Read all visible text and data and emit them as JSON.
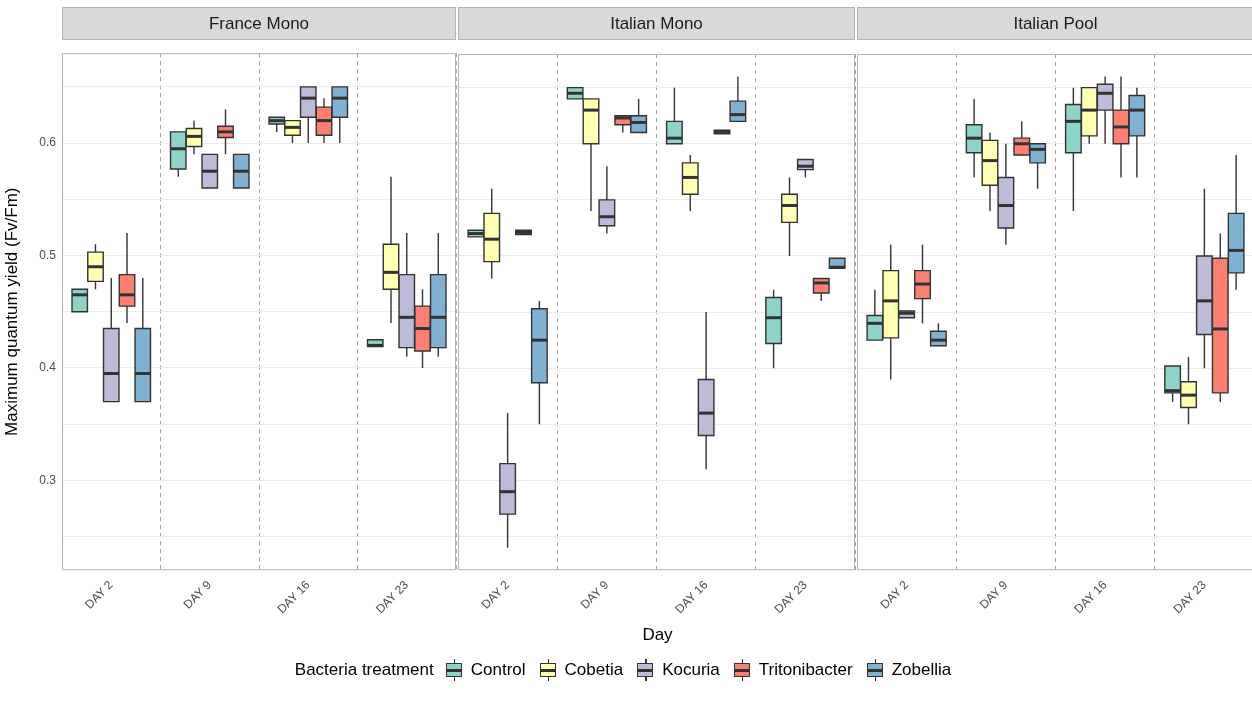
{
  "chart_data": [
    {
      "type": "box",
      "title": "France Mono",
      "ylabel": "Maximum quantum yield (Fv/Fm)",
      "grid": true,
      "categories": [
        "DAY 2",
        "DAY 9",
        "DAY 16",
        "DAY 23"
      ],
      "ylim": [
        0.22,
        0.68
      ],
      "yticks": [
        {
          "value": 0.25,
          "label": null
        },
        0.3,
        {
          "value": 0.35,
          "label": null
        },
        0.4,
        {
          "value": 0.45,
          "label": null
        },
        0.5,
        {
          "value": 0.55,
          "label": null
        },
        0.6,
        {
          "value": 0.65,
          "label": null
        }
      ],
      "series": [
        {
          "color": "#8dd3c7",
          "boxes": [
            {
              "low": 0.45,
              "q1": 0.45,
              "median": 0.465,
              "q3": 0.47,
              "high": 0.47
            },
            {
              "low": 0.57,
              "q1": 0.577,
              "median": 0.595,
              "q3": 0.61,
              "high": 0.61
            },
            {
              "low": 0.61,
              "q1": 0.617,
              "median": 0.62,
              "q3": 0.623,
              "high": 0.623
            },
            {
              "low": 0.419,
              "q1": 0.419,
              "median": 0.42,
              "q3": 0.425,
              "high": 0.425
            }
          ]
        },
        {
          "color": "#ffffb3",
          "boxes": [
            {
              "low": 0.47,
              "q1": 0.477,
              "median": 0.49,
              "q3": 0.503,
              "high": 0.51
            },
            {
              "low": 0.59,
              "q1": 0.597,
              "median": 0.606,
              "q3": 0.613,
              "high": 0.62
            },
            {
              "low": 0.6,
              "q1": 0.607,
              "median": 0.614,
              "q3": 0.62,
              "high": 0.62
            },
            {
              "low": 0.44,
              "q1": 0.47,
              "median": 0.485,
              "q3": 0.51,
              "high": 0.57
            }
          ]
        },
        {
          "color": "#bebada",
          "boxes": [
            {
              "low": 0.37,
              "q1": 0.37,
              "median": 0.395,
              "q3": 0.435,
              "high": 0.48
            },
            {
              "low": 0.56,
              "q1": 0.56,
              "median": 0.575,
              "q3": 0.59,
              "high": 0.59
            },
            {
              "low": 0.6,
              "q1": 0.623,
              "median": 0.64,
              "q3": 0.65,
              "high": 0.65
            },
            {
              "low": 0.41,
              "q1": 0.418,
              "median": 0.445,
              "q3": 0.483,
              "high": 0.52
            }
          ]
        },
        {
          "color": "#fb8072",
          "boxes": [
            {
              "low": 0.44,
              "q1": 0.455,
              "median": 0.465,
              "q3": 0.483,
              "high": 0.52
            },
            {
              "low": 0.59,
              "q1": 0.605,
              "median": 0.61,
              "q3": 0.615,
              "high": 0.63
            },
            {
              "low": 0.6,
              "q1": 0.607,
              "median": 0.62,
              "q3": 0.632,
              "high": 0.64
            },
            {
              "low": 0.4,
              "q1": 0.415,
              "median": 0.435,
              "q3": 0.455,
              "high": 0.47
            }
          ]
        },
        {
          "color": "#80b1d3",
          "boxes": [
            {
              "low": 0.37,
              "q1": 0.37,
              "median": 0.395,
              "q3": 0.435,
              "high": 0.48
            },
            {
              "low": 0.56,
              "q1": 0.56,
              "median": 0.575,
              "q3": 0.59,
              "high": 0.59
            },
            {
              "low": 0.6,
              "q1": 0.623,
              "median": 0.64,
              "q3": 0.65,
              "high": 0.65
            },
            {
              "low": 0.41,
              "q1": 0.418,
              "median": 0.445,
              "q3": 0.483,
              "high": 0.52
            }
          ]
        }
      ]
    },
    {
      "type": "box",
      "title": "Italian Mono",
      "xlabel": "Day",
      "legend": "bottom",
      "legend_title": "Bacteria treatment",
      "tick_labels": "x",
      "grid": true,
      "categories": [
        "DAY 2",
        "DAY 9",
        "DAY 16",
        "DAY 23"
      ],
      "ylim": [
        0.22,
        0.68
      ],
      "yticks": [
        {
          "value": 0.25,
          "label": null
        },
        0.3,
        {
          "value": 0.35,
          "label": null
        },
        0.4,
        {
          "value": 0.45,
          "label": null
        },
        0.5,
        {
          "value": 0.55,
          "label": null
        },
        0.6,
        {
          "value": 0.65,
          "label": null
        }
      ],
      "series": [
        {
          "name": "Control",
          "color": "#8dd3c7",
          "boxes": [
            {
              "low": 0.517,
              "q1": 0.517,
              "median": 0.52,
              "q3": 0.523,
              "high": 0.523
            },
            {
              "low": 0.64,
              "q1": 0.64,
              "median": 0.645,
              "q3": 0.65,
              "high": 0.65
            },
            {
              "low": 0.6,
              "q1": 0.6,
              "median": 0.605,
              "q3": 0.62,
              "high": 0.65
            },
            {
              "low": 0.4,
              "q1": 0.422,
              "median": 0.445,
              "q3": 0.463,
              "high": 0.47
            }
          ]
        },
        {
          "name": "Cobetia",
          "color": "#ffffb3",
          "boxes": [
            {
              "low": 0.48,
              "q1": 0.495,
              "median": 0.515,
              "q3": 0.538,
              "high": 0.56
            },
            {
              "low": 0.54,
              "q1": 0.6,
              "median": 0.63,
              "q3": 0.64,
              "high": 0.64
            },
            {
              "low": 0.54,
              "q1": 0.555,
              "median": 0.57,
              "q3": 0.583,
              "high": 0.59
            },
            {
              "low": 0.5,
              "q1": 0.53,
              "median": 0.545,
              "q3": 0.555,
              "high": 0.57
            }
          ]
        },
        {
          "name": "Kocuria",
          "color": "#bebada",
          "boxes": [
            {
              "low": 0.24,
              "q1": 0.27,
              "median": 0.29,
              "q3": 0.315,
              "high": 0.36
            },
            {
              "low": 0.52,
              "q1": 0.527,
              "median": 0.535,
              "q3": 0.55,
              "high": 0.58
            },
            {
              "low": 0.31,
              "q1": 0.34,
              "median": 0.36,
              "q3": 0.39,
              "high": 0.45
            },
            {
              "low": 0.57,
              "q1": 0.577,
              "median": 0.58,
              "q3": 0.586,
              "high": 0.586
            }
          ]
        },
        {
          "name": "Tritonibacter",
          "color": "#fb8072",
          "boxes": [
            {
              "low": 0.519,
              "q1": 0.519,
              "median": 0.521,
              "q3": 0.523,
              "high": 0.523
            },
            {
              "low": 0.61,
              "q1": 0.617,
              "median": 0.623,
              "q3": 0.625,
              "high": 0.625
            },
            {
              "low": 0.609,
              "q1": 0.609,
              "median": 0.611,
              "q3": 0.612,
              "high": 0.612
            },
            {
              "low": 0.46,
              "q1": 0.467,
              "median": 0.476,
              "q3": 0.48,
              "high": 0.48
            }
          ]
        },
        {
          "name": "Zobellia",
          "color": "#80b1d3",
          "boxes": [
            {
              "low": 0.35,
              "q1": 0.387,
              "median": 0.425,
              "q3": 0.453,
              "high": 0.46
            },
            {
              "low": 0.61,
              "q1": 0.61,
              "median": 0.619,
              "q3": 0.625,
              "high": 0.64
            },
            {
              "low": 0.62,
              "q1": 0.62,
              "median": 0.626,
              "q3": 0.638,
              "high": 0.66
            },
            {
              "low": 0.489,
              "q1": 0.489,
              "median": 0.49,
              "q3": 0.498,
              "high": 0.498
            }
          ]
        }
      ]
    },
    {
      "type": "box",
      "title": "Italian Pool",
      "tick_labels": "x",
      "grid": true,
      "categories": [
        "DAY 2",
        "DAY 9",
        "DAY 16",
        "DAY 23"
      ],
      "ylim": [
        0.22,
        0.68
      ],
      "yticks": [
        {
          "value": 0.25,
          "label": null
        },
        0.3,
        {
          "value": 0.35,
          "label": null
        },
        0.4,
        {
          "value": 0.45,
          "label": null
        },
        0.5,
        {
          "value": 0.55,
          "label": null
        },
        0.6,
        {
          "value": 0.65,
          "label": null
        }
      ],
      "series": [
        {
          "color": "#8dd3c7",
          "boxes": [
            {
              "low": 0.425,
              "q1": 0.425,
              "median": 0.44,
              "q3": 0.447,
              "high": 0.47
            },
            {
              "low": 0.57,
              "q1": 0.592,
              "median": 0.605,
              "q3": 0.617,
              "high": 0.64
            },
            {
              "low": 0.54,
              "q1": 0.592,
              "median": 0.62,
              "q3": 0.635,
              "high": 0.65
            },
            {
              "low": 0.37,
              "q1": 0.378,
              "median": 0.38,
              "q3": 0.402,
              "high": 0.402
            }
          ]
        },
        {
          "color": "#ffffb3",
          "boxes": [
            {
              "low": 0.39,
              "q1": 0.427,
              "median": 0.46,
              "q3": 0.487,
              "high": 0.51
            },
            {
              "low": 0.54,
              "q1": 0.563,
              "median": 0.585,
              "q3": 0.603,
              "high": 0.61
            },
            {
              "low": 0.6,
              "q1": 0.607,
              "median": 0.63,
              "q3": 0.65,
              "high": 0.65
            },
            {
              "low": 0.35,
              "q1": 0.365,
              "median": 0.376,
              "q3": 0.388,
              "high": 0.41
            }
          ]
        },
        {
          "color": "#bebada",
          "boxes": [
            {
              "low": 0.445,
              "q1": 0.445,
              "median": 0.449,
              "q3": 0.451,
              "high": 0.451
            },
            {
              "low": 0.51,
              "q1": 0.525,
              "median": 0.545,
              "q3": 0.57,
              "high": 0.6
            },
            {
              "low": 0.6,
              "q1": 0.63,
              "median": 0.645,
              "q3": 0.653,
              "high": 0.66
            },
            {
              "low": 0.4,
              "q1": 0.43,
              "median": 0.46,
              "q3": 0.5,
              "high": 0.56
            }
          ]
        },
        {
          "color": "#fb8072",
          "boxes": [
            {
              "low": 0.44,
              "q1": 0.462,
              "median": 0.475,
              "q3": 0.487,
              "high": 0.51
            },
            {
              "low": 0.59,
              "q1": 0.59,
              "median": 0.6,
              "q3": 0.605,
              "high": 0.62
            },
            {
              "low": 0.57,
              "q1": 0.6,
              "median": 0.615,
              "q3": 0.63,
              "high": 0.66
            },
            {
              "low": 0.37,
              "q1": 0.378,
              "median": 0.435,
              "q3": 0.498,
              "high": 0.52
            }
          ]
        },
        {
          "color": "#80b1d3",
          "boxes": [
            {
              "low": 0.42,
              "q1": 0.42,
              "median": 0.425,
              "q3": 0.433,
              "high": 0.44
            },
            {
              "low": 0.56,
              "q1": 0.583,
              "median": 0.595,
              "q3": 0.6,
              "high": 0.6
            },
            {
              "low": 0.57,
              "q1": 0.607,
              "median": 0.63,
              "q3": 0.643,
              "high": 0.65
            },
            {
              "low": 0.47,
              "q1": 0.485,
              "median": 0.505,
              "q3": 0.538,
              "high": 0.59
            }
          ]
        }
      ]
    }
  ]
}
